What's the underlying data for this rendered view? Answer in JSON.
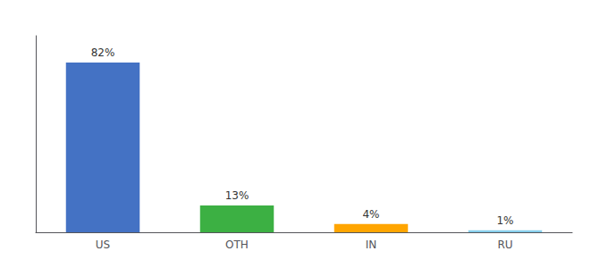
{
  "chart_data": {
    "type": "bar",
    "categories": [
      "US",
      "OTH",
      "IN",
      "RU"
    ],
    "values": [
      82,
      13,
      4,
      1
    ],
    "value_labels": [
      "82%",
      "13%",
      "4%",
      "1%"
    ],
    "colors": [
      "#4472C4",
      "#3CB043",
      "#FFA500",
      "#87CEEB"
    ],
    "ylim": [
      0,
      95
    ],
    "data_labels": true,
    "tick_labels": "x",
    "grid": false
  }
}
